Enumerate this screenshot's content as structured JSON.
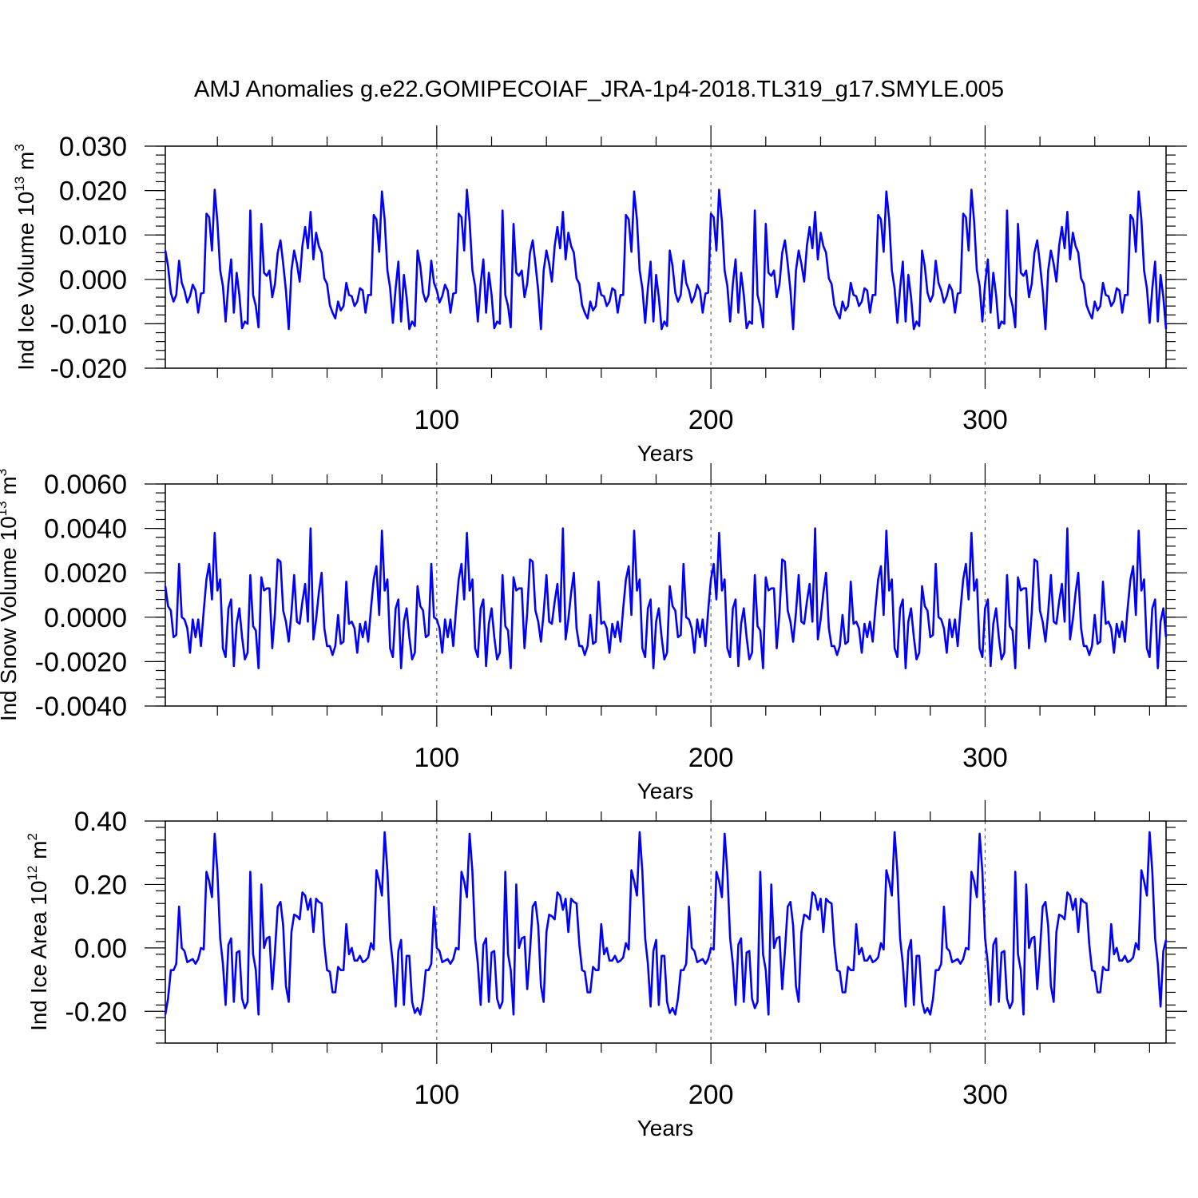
{
  "title": "AMJ Anomalies g.e22.GOMIPECOIAF_JRA-1p4-2018.TL319_g17.SMYLE.005",
  "colors": {
    "series": "#0000ff",
    "refline": "#666666"
  },
  "chart_data": [
    {
      "type": "line",
      "ylabel": {
        "main": "Ind Ice Volume 10",
        "sup": "13",
        "unit": " m",
        "unit_sup": "3"
      },
      "xlabel": "Years",
      "xlim": [
        1,
        366
      ],
      "ylim": [
        -0.02,
        0.03
      ],
      "yticks": [
        -0.02,
        -0.01,
        0,
        0.01,
        0.02,
        0.03
      ],
      "yticklabels": [
        "-0.020",
        "-0.010",
        "0.000",
        "0.010",
        "0.020",
        "0.030"
      ],
      "xticks": [
        100,
        200,
        300
      ],
      "xticklabels": [
        "100",
        "200",
        "300"
      ],
      "reference_x": [
        100,
        200,
        300
      ],
      "pattern": [
        0.0065,
        0.003,
        -0.003,
        -0.005,
        -0.0035,
        0.0042,
        -0.0008,
        -0.0025,
        -0.0052,
        -0.0038,
        -0.0012,
        -0.0025,
        -0.0075,
        -0.0032,
        -0.003,
        0.0148,
        0.014,
        0.0065,
        0.0202,
        0.013,
        0.002,
        -0.0015,
        -0.0095,
        -0.001,
        0.0045,
        -0.0075,
        0.0015,
        -0.0035,
        -0.011,
        -0.0095,
        -0.01,
        0.0155,
        -0.0035,
        -0.006,
        -0.0108,
        0.0125,
        0.0015,
        0.0008,
        0.002,
        -0.004,
        -0.001,
        0.006,
        0.0088,
        0.0035,
        -0.0025,
        -0.0112,
        0.002,
        0.0065,
        0.0035,
        -0.0005,
        0.0075,
        0.0118,
        0.007,
        0.0152,
        0.0045,
        0.0105,
        0.0075,
        0.006,
        0.0002,
        -0.001,
        -0.0058,
        -0.0075,
        -0.0088,
        -0.005,
        -0.007,
        -0.006,
        -0.0008,
        -0.0035,
        -0.0038,
        -0.006,
        -0.005,
        -0.002,
        -0.0025,
        -0.0075,
        -0.0035,
        -0.0035,
        0.0145,
        0.0135,
        0.0062,
        0.0198,
        0.0135,
        0.002,
        -0.002,
        -0.0098,
        -0.002,
        0.004,
        -0.0095,
        0.001,
        -0.004,
        -0.0112,
        -0.0095,
        -0.0105
      ],
      "series": [
        {
          "values_note": "",
          "values": []
        }
      ]
    },
    {
      "type": "line",
      "ylabel": {
        "main": "Ind Snow Volume 10",
        "sup": "13",
        "unit": " m",
        "unit_sup": "3"
      },
      "xlabel": "Years",
      "xlim": [
        1,
        366
      ],
      "ylim": [
        -0.004,
        0.006
      ],
      "yticks": [
        -0.004,
        -0.002,
        0,
        0.002,
        0.004,
        0.006
      ],
      "yticklabels": [
        "-0.0040",
        "-0.0020",
        "0.0000",
        "0.0020",
        "0.0040",
        "0.0060"
      ],
      "xticks": [
        100,
        200,
        300
      ],
      "xticklabels": [
        "100",
        "200",
        "300"
      ],
      "reference_x": [
        100,
        200,
        300
      ],
      "pattern": [
        0.0014,
        0.0005,
        0.0003,
        -0.0009,
        -0.0008,
        0.0024,
        0.0,
        -0.0001,
        -0.0005,
        -0.0016,
        -0.0001,
        -0.0009,
        -0.0001,
        -0.0013,
        0.0003,
        0.0017,
        0.0024,
        0.0008,
        0.0038,
        0.0012,
        0.0017,
        -0.0014,
        -0.0018,
        0.0004,
        0.0008,
        -0.0022,
        -0.0003,
        0.0004,
        -0.0009,
        -0.0019,
        -0.0016,
        0.0019,
        -0.0004,
        -0.0006,
        -0.0023,
        0.0018,
        0.0012,
        0.0013,
        0.0013,
        -0.0014,
        0.0002,
        0.0026,
        0.0025,
        0.0003,
        -0.0002,
        -0.0011,
        0.0002,
        0.0019,
        -0.0002,
        -0.0003,
        0.0007,
        0.0015,
        -0.0002,
        0.004,
        -0.001,
        -0.0001,
        0.0011,
        0.002,
        -0.0005,
        -0.0013,
        -0.0013,
        -0.0017,
        -0.0013,
        0.0001,
        -0.0012,
        -0.0011,
        0.0016,
        -0.0003,
        -0.0002,
        -0.0005,
        -0.0016,
        -0.0003,
        -0.0009,
        -0.0002,
        -0.0011,
        0.0004,
        0.0017,
        0.0023,
        0.0001,
        0.0039,
        0.0012,
        0.0017,
        -0.0014,
        -0.0018,
        0.0004,
        0.0008,
        -0.0023,
        -0.0002,
        0.0004,
        -0.0009,
        -0.0019,
        -0.0016
      ]
    },
    {
      "type": "line",
      "ylabel": {
        "main": "Ind Ice Area 10",
        "sup": "12",
        "unit": " m",
        "unit_sup": "2"
      },
      "xlabel": "Years",
      "xlim": [
        1,
        366
      ],
      "ylim": [
        -0.3,
        0.4
      ],
      "yticks": [
        -0.2,
        0,
        0.2,
        0.4
      ],
      "yticklabels": [
        "-0.20",
        "0.00",
        "0.20",
        "0.40"
      ],
      "xticks": [
        100,
        200,
        300
      ],
      "xticklabels": [
        "100",
        "200",
        "300"
      ],
      "reference_x": [
        100,
        200,
        300
      ],
      "pattern": [
        -0.21,
        -0.16,
        -0.07,
        -0.07,
        -0.05,
        0.13,
        0.0,
        -0.01,
        -0.045,
        -0.04,
        -0.035,
        -0.05,
        -0.035,
        0.0,
        -0.005,
        0.24,
        0.21,
        0.16,
        0.36,
        0.24,
        0.03,
        -0.05,
        -0.18,
        0.01,
        0.03,
        -0.17,
        -0.015,
        -0.01,
        -0.16,
        -0.19,
        -0.17,
        0.24,
        -0.02,
        -0.07,
        -0.21,
        0.2,
        0.0,
        0.03,
        0.035,
        -0.13,
        -0.01,
        0.13,
        0.145,
        0.07,
        -0.12,
        -0.17,
        0.05,
        0.105,
        0.1,
        0.09,
        0.175,
        0.165,
        0.12,
        0.155,
        0.05,
        0.155,
        0.145,
        0.14,
        0.01,
        -0.07,
        -0.075,
        -0.14,
        -0.14,
        -0.06,
        -0.07,
        -0.07,
        0.075,
        -0.02,
        0.0,
        -0.04,
        -0.04,
        -0.025,
        -0.045,
        -0.04,
        -0.03,
        0.015,
        -0.005,
        0.245,
        0.21,
        0.165,
        0.365,
        0.24,
        0.03,
        -0.05,
        -0.185,
        -0.01,
        0.025,
        -0.18,
        -0.025,
        -0.025,
        -0.17,
        -0.205,
        -0.19
      ]
    }
  ]
}
